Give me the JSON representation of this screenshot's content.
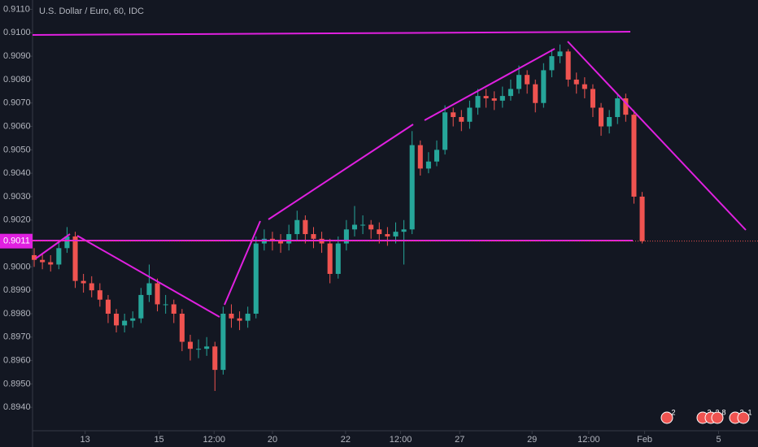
{
  "chart_data": {
    "type": "candlestick",
    "title": "U.S. Dollar / Euro, 60, IDC",
    "up_color": "#26a69a",
    "down_color": "#ef5350",
    "open": [
      0.9005,
      0.9003,
      0.9002,
      0.9001,
      0.9008,
      0.9013,
      0.8994,
      0.8993,
      0.899,
      0.8986,
      0.898,
      0.8975,
      0.8977,
      0.8978,
      0.8988,
      0.8993,
      0.8984,
      0.8984,
      0.898,
      0.8968,
      0.8965,
      0.8965,
      0.8966,
      0.8956,
      0.898,
      0.8978,
      0.8977,
      0.898,
      0.901,
      0.9012,
      0.9011,
      0.901,
      0.9014,
      0.902,
      0.9014,
      0.9012,
      0.901,
      0.8997,
      0.901,
      0.9016,
      0.9018,
      0.9018,
      0.9016,
      0.9014,
      0.9013,
      0.9015,
      0.9016,
      0.9052,
      0.9042,
      0.9045,
      0.905,
      0.9066,
      0.9064,
      0.9062,
      0.9068,
      0.9073,
      0.9072,
      0.9071,
      0.9073,
      0.9076,
      0.9082,
      0.9078,
      0.907,
      0.9084,
      0.909,
      0.9092,
      0.908,
      0.9078,
      0.9076,
      0.9068,
      0.906,
      0.9064,
      0.9072,
      0.9065,
      0.903
    ],
    "high": [
      0.9008,
      0.9006,
      0.9005,
      0.9011,
      0.9017,
      0.9015,
      0.8997,
      0.8996,
      0.8993,
      0.8988,
      0.8982,
      0.898,
      0.8981,
      0.8991,
      0.9001,
      0.8995,
      0.8988,
      0.8986,
      0.8982,
      0.8971,
      0.8969,
      0.897,
      0.8968,
      0.8983,
      0.8984,
      0.8981,
      0.8983,
      0.9013,
      0.9016,
      0.9015,
      0.9014,
      0.9018,
      0.9024,
      0.9022,
      0.9017,
      0.9015,
      0.9012,
      0.9013,
      0.902,
      0.9026,
      0.9022,
      0.902,
      0.9019,
      0.9017,
      0.9019,
      0.902,
      0.9058,
      0.9054,
      0.9049,
      0.9054,
      0.9069,
      0.9068,
      0.9067,
      0.9071,
      0.9076,
      0.9076,
      0.9075,
      0.9077,
      0.908,
      0.9086,
      0.9084,
      0.908,
      0.9087,
      0.9093,
      0.9095,
      0.9093,
      0.9083,
      0.9081,
      0.9078,
      0.907,
      0.9067,
      0.9074,
      0.9074,
      0.9067,
      0.9032
    ],
    "low": [
      0.9,
      0.8999,
      0.8998,
      0.8999,
      0.9006,
      0.8991,
      0.8989,
      0.8987,
      0.8983,
      0.8976,
      0.8972,
      0.8972,
      0.8974,
      0.8976,
      0.8985,
      0.8981,
      0.898,
      0.8976,
      0.8964,
      0.896,
      0.8961,
      0.8962,
      0.8947,
      0.8954,
      0.8974,
      0.8973,
      0.8974,
      0.8978,
      0.9007,
      0.9007,
      0.9006,
      0.9007,
      0.9011,
      0.901,
      0.9008,
      0.9006,
      0.8993,
      0.8995,
      0.9007,
      0.9013,
      0.9014,
      0.9012,
      0.901,
      0.9009,
      0.901,
      0.9001,
      0.9014,
      0.9039,
      0.904,
      0.9043,
      0.9048,
      0.906,
      0.9058,
      0.9059,
      0.9065,
      0.9068,
      0.9067,
      0.9068,
      0.9071,
      0.9074,
      0.9074,
      0.9066,
      0.9068,
      0.9081,
      0.9087,
      0.9077,
      0.9074,
      0.9072,
      0.9064,
      0.9056,
      0.9057,
      0.9061,
      0.9062,
      0.9027,
      0.901
    ],
    "close": [
      0.9003,
      0.9002,
      0.9001,
      0.9008,
      0.9013,
      0.8994,
      0.8993,
      0.899,
      0.8986,
      0.898,
      0.8975,
      0.8977,
      0.8978,
      0.8988,
      0.8993,
      0.8984,
      0.8984,
      0.898,
      0.8968,
      0.8965,
      0.8965,
      0.8966,
      0.8956,
      0.898,
      0.8978,
      0.8977,
      0.898,
      0.901,
      0.9012,
      0.9011,
      0.901,
      0.9014,
      0.902,
      0.9014,
      0.9012,
      0.901,
      0.8997,
      0.901,
      0.9016,
      0.9018,
      0.9018,
      0.9016,
      0.9014,
      0.9013,
      0.9015,
      0.9016,
      0.9052,
      0.9042,
      0.9045,
      0.905,
      0.9066,
      0.9064,
      0.9062,
      0.9068,
      0.9073,
      0.9072,
      0.9071,
      0.9073,
      0.9076,
      0.9082,
      0.9078,
      0.907,
      0.9084,
      0.909,
      0.9092,
      0.908,
      0.9078,
      0.9076,
      0.9068,
      0.906,
      0.9064,
      0.9072,
      0.9065,
      0.903,
      0.9011
    ],
    "ylim": [
      0.893,
      0.9114
    ],
    "yticks": [
      {
        "value": 0.894,
        "label": "0.8940"
      },
      {
        "value": 0.895,
        "label": "0.8950"
      },
      {
        "value": 0.896,
        "label": "0.8960"
      },
      {
        "value": 0.897,
        "label": "0.8970"
      },
      {
        "value": 0.898,
        "label": "0.8980"
      },
      {
        "value": 0.899,
        "label": "0.8990"
      },
      {
        "value": 0.9,
        "label": "0.9000"
      },
      {
        "value": 0.901,
        "label": "0.9010"
      },
      {
        "value": 0.902,
        "label": "0.9020"
      },
      {
        "value": 0.903,
        "label": "0.9030"
      },
      {
        "value": 0.904,
        "label": "0.9040"
      },
      {
        "value": 0.905,
        "label": "0.9050"
      },
      {
        "value": 0.906,
        "label": "0.9060"
      },
      {
        "value": 0.907,
        "label": "0.9070"
      },
      {
        "value": 0.908,
        "label": "0.9080"
      },
      {
        "value": 0.909,
        "label": "0.9090"
      },
      {
        "value": 0.91,
        "label": "0.9100"
      },
      {
        "value": 0.911,
        "label": "0.9110"
      }
    ],
    "xlim": [
      -0.2,
      88.1
    ],
    "xticks": [
      {
        "value": 6.2,
        "label": "13"
      },
      {
        "value": 15.2,
        "label": "15"
      },
      {
        "value": 21.9,
        "label": "12:00"
      },
      {
        "value": 29.0,
        "label": "20"
      },
      {
        "value": 37.9,
        "label": "22"
      },
      {
        "value": 44.6,
        "label": "12:00"
      },
      {
        "value": 51.8,
        "label": "27"
      },
      {
        "value": 60.6,
        "label": "29"
      },
      {
        "value": 67.5,
        "label": "12:00"
      },
      {
        "value": 74.3,
        "label": "Feb"
      },
      {
        "value": 83.3,
        "label": "5"
      }
    ],
    "last_price": {
      "value": 0.9011,
      "label": "0.9011"
    },
    "events": [
      "2",
      "2",
      "2",
      "8",
      "2",
      "1"
    ]
  }
}
